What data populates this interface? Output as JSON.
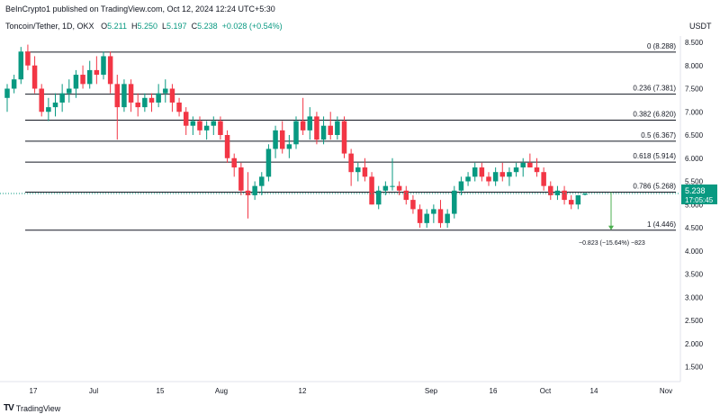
{
  "header": {
    "published_text": "BeInCrypto1 published on TradingView.com, Oct 12, 2024 12:24 UTC+5:30"
  },
  "symbol": {
    "name": "Toncoin/Tether, 1D, OKX",
    "open_label": "O",
    "open_value": "5.211",
    "high_label": "H",
    "high_value": "5.250",
    "low_label": "L",
    "low_value": "5.197",
    "close_label": "C",
    "close_value": "5.238",
    "change": "+0.028 (+0.54%)"
  },
  "price_axis": {
    "currency": "USDT",
    "last_price": "5.238",
    "countdown": "17:05:45"
  },
  "measure": {
    "label": "−0.823 (−15.64%) −823"
  },
  "footer": {
    "brand": "TradingView",
    "logo": "TV"
  },
  "colors": {
    "up": "#089981",
    "down": "#f23645",
    "fib_line": "#131722",
    "price_line": "#089981",
    "measure": "#4caf50"
  },
  "chart_data": {
    "type": "candlestick",
    "title": "Toncoin/Tether, 1D, OKX",
    "x_axis_ticks": [
      "17",
      "Jul",
      "15",
      "Aug",
      "12",
      "Sep",
      "16",
      "Oct",
      "14",
      "Nov"
    ],
    "y_axis_ticks": [
      "1.500",
      "2.000",
      "2.500",
      "3.000",
      "3.500",
      "4.000",
      "4.500",
      "5.000",
      "5.500",
      "6.000",
      "6.500",
      "7.000",
      "7.500",
      "8.000",
      "8.500"
    ],
    "ylim": [
      1.1,
      8.6
    ],
    "fibonacci_levels": [
      {
        "label": "0 (8.288)",
        "value": 8.288
      },
      {
        "label": "0.236 (7.381)",
        "value": 7.381
      },
      {
        "label": "0.382 (6.820)",
        "value": 6.82
      },
      {
        "label": "0.5 (6.367)",
        "value": 6.367
      },
      {
        "label": "0.618 (5.914)",
        "value": 5.914
      },
      {
        "label": "0.786 (5.268)",
        "value": 5.268
      },
      {
        "label": "1 (4.446)",
        "value": 4.446
      }
    ],
    "ohlc": [
      [
        7.3,
        7.6,
        7.0,
        7.5
      ],
      [
        7.5,
        7.8,
        7.4,
        7.7
      ],
      [
        7.7,
        8.4,
        7.6,
        8.3
      ],
      [
        8.3,
        8.45,
        7.9,
        8.0
      ],
      [
        8.0,
        8.2,
        7.4,
        7.5
      ],
      [
        7.5,
        7.6,
        6.9,
        7.0
      ],
      [
        7.0,
        7.3,
        6.8,
        7.1
      ],
      [
        7.1,
        7.4,
        6.9,
        7.2
      ],
      [
        7.2,
        7.6,
        7.0,
        7.4
      ],
      [
        7.4,
        7.7,
        7.2,
        7.5
      ],
      [
        7.5,
        7.9,
        7.3,
        7.8
      ],
      [
        7.8,
        8.0,
        7.5,
        7.6
      ],
      [
        7.6,
        8.1,
        7.5,
        7.9
      ],
      [
        7.9,
        8.2,
        7.6,
        7.8
      ],
      [
        7.8,
        8.3,
        7.7,
        8.2
      ],
      [
        8.2,
        8.3,
        7.4,
        7.6
      ],
      [
        7.6,
        7.8,
        6.4,
        7.1
      ],
      [
        7.1,
        7.7,
        7.0,
        7.6
      ],
      [
        7.6,
        7.7,
        7.0,
        7.2
      ],
      [
        7.2,
        7.4,
        6.9,
        7.1
      ],
      [
        7.1,
        7.4,
        7.0,
        7.3
      ],
      [
        7.3,
        7.4,
        7.0,
        7.2
      ],
      [
        7.2,
        7.6,
        7.1,
        7.4
      ],
      [
        7.4,
        7.7,
        7.2,
        7.5
      ],
      [
        7.5,
        7.6,
        7.0,
        7.2
      ],
      [
        7.2,
        7.3,
        6.9,
        7.0
      ],
      [
        7.0,
        7.1,
        6.5,
        6.7
      ],
      [
        6.7,
        6.9,
        6.5,
        6.8
      ],
      [
        6.8,
        6.9,
        6.5,
        6.6
      ],
      [
        6.6,
        6.8,
        6.4,
        6.7
      ],
      [
        6.7,
        6.9,
        6.5,
        6.8
      ],
      [
        6.8,
        6.9,
        6.4,
        6.5
      ],
      [
        6.5,
        6.6,
        5.9,
        6.0
      ],
      [
        6.0,
        6.1,
        5.6,
        5.8
      ],
      [
        5.8,
        5.9,
        5.2,
        5.3
      ],
      [
        5.3,
        5.7,
        4.7,
        5.2
      ],
      [
        5.2,
        5.5,
        5.1,
        5.4
      ],
      [
        5.4,
        5.7,
        5.2,
        5.6
      ],
      [
        5.6,
        6.3,
        5.5,
        6.2
      ],
      [
        6.2,
        6.7,
        6.0,
        6.6
      ],
      [
        6.6,
        6.8,
        6.1,
        6.2
      ],
      [
        6.2,
        6.5,
        6.0,
        6.3
      ],
      [
        6.3,
        6.9,
        6.2,
        6.8
      ],
      [
        6.8,
        7.3,
        6.5,
        6.6
      ],
      [
        6.6,
        7.1,
        6.4,
        6.9
      ],
      [
        6.9,
        7.0,
        6.3,
        6.4
      ],
      [
        6.4,
        6.9,
        6.3,
        6.7
      ],
      [
        6.7,
        7.0,
        6.4,
        6.5
      ],
      [
        6.5,
        6.9,
        6.4,
        6.8
      ],
      [
        6.8,
        6.9,
        6.0,
        6.1
      ],
      [
        6.1,
        6.2,
        5.4,
        5.7
      ],
      [
        5.7,
        5.9,
        5.5,
        5.8
      ],
      [
        5.8,
        6.0,
        5.5,
        5.6
      ],
      [
        5.6,
        5.7,
        5.0,
        5.0
      ],
      [
        5.0,
        5.4,
        4.9,
        5.3
      ],
      [
        5.3,
        5.5,
        5.2,
        5.4
      ],
      [
        5.4,
        6.0,
        5.3,
        5.4
      ],
      [
        5.4,
        5.5,
        5.2,
        5.3
      ],
      [
        5.3,
        5.4,
        5.0,
        5.1
      ],
      [
        5.1,
        5.2,
        4.8,
        4.9
      ],
      [
        4.9,
        5.0,
        4.5,
        4.6
      ],
      [
        4.6,
        4.9,
        4.5,
        4.8
      ],
      [
        4.8,
        5.0,
        4.6,
        4.9
      ],
      [
        4.9,
        5.1,
        4.5,
        4.6
      ],
      [
        4.6,
        4.9,
        4.5,
        4.8
      ],
      [
        4.8,
        5.4,
        4.7,
        5.3
      ],
      [
        5.3,
        5.6,
        5.2,
        5.5
      ],
      [
        5.5,
        5.7,
        5.4,
        5.6
      ],
      [
        5.6,
        5.9,
        5.5,
        5.8
      ],
      [
        5.8,
        5.9,
        5.5,
        5.6
      ],
      [
        5.6,
        5.7,
        5.4,
        5.5
      ],
      [
        5.5,
        5.8,
        5.4,
        5.7
      ],
      [
        5.7,
        5.9,
        5.5,
        5.6
      ],
      [
        5.6,
        5.8,
        5.4,
        5.7
      ],
      [
        5.7,
        5.9,
        5.6,
        5.8
      ],
      [
        5.8,
        6.0,
        5.6,
        5.9
      ],
      [
        5.9,
        6.1,
        5.8,
        5.8
      ],
      [
        5.8,
        6.0,
        5.6,
        5.7
      ],
      [
        5.7,
        5.8,
        5.3,
        5.4
      ],
      [
        5.4,
        5.5,
        5.1,
        5.2
      ],
      [
        5.2,
        5.4,
        5.1,
        5.3
      ],
      [
        5.3,
        5.4,
        5.0,
        5.1
      ],
      [
        5.1,
        5.2,
        4.9,
        5.0
      ],
      [
        5.0,
        5.2,
        4.9,
        5.2
      ],
      [
        5.211,
        5.25,
        5.197,
        5.238
      ]
    ]
  }
}
